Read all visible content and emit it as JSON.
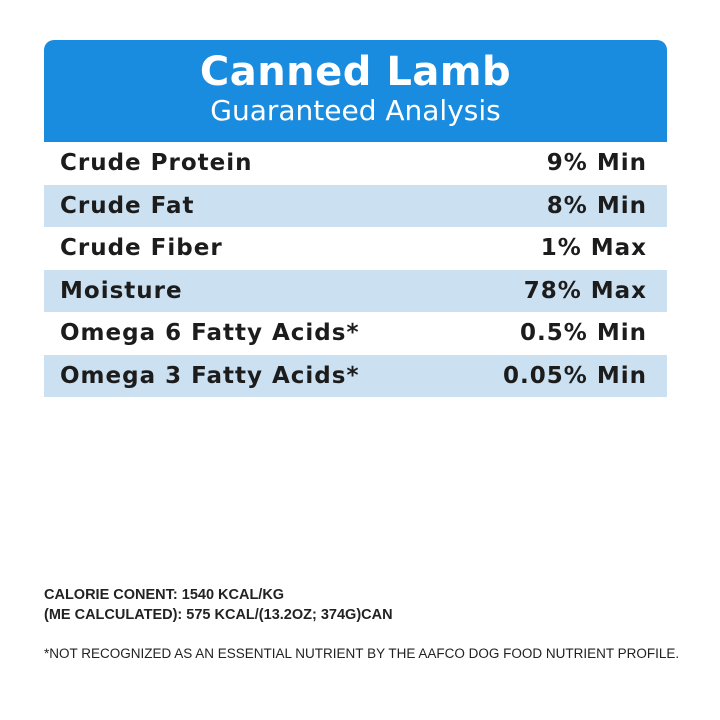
{
  "header": {
    "title": "Canned Lamb",
    "subtitle": "Guaranteed Analysis"
  },
  "rows": [
    {
      "label": "Crude Protein",
      "value": "9% Min"
    },
    {
      "label": "Crude Fat",
      "value": "8% Min"
    },
    {
      "label": "Crude Fiber",
      "value": "1% Max"
    },
    {
      "label": "Moisture",
      "value": "78% Max"
    },
    {
      "label": "Omega 6 Fatty Acids*",
      "value": "0.5% Min"
    },
    {
      "label": "Omega 3 Fatty Acids*",
      "value": "0.05% Min"
    }
  ],
  "footer": {
    "calorie_line1": "CALORIE CONENT: 1540 KCAL/KG",
    "calorie_line2": "(ME CALCULATED): 575 KCAL/(13.2OZ; 374G)CAN",
    "note": "*NOT RECOGNIZED AS AN ESSENTIAL NUTRIENT BY THE AAFCO DOG FOOD NUTRIENT PROFILE."
  },
  "colors": {
    "header_blue": "#1a8ce0",
    "row_alt": "#cbe0f0"
  }
}
